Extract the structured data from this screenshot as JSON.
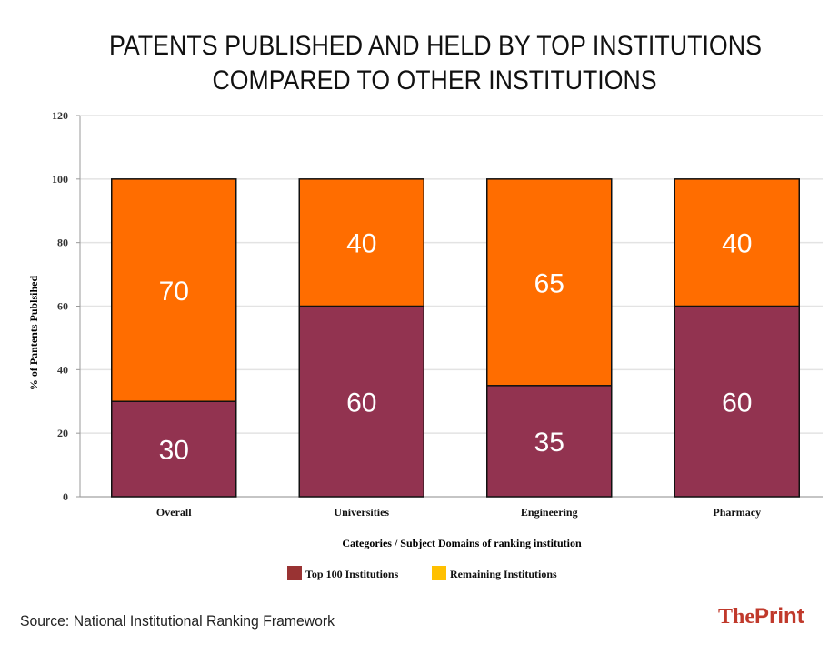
{
  "chart_data": {
    "type": "stacked_bar",
    "title": [
      "PATENTS PUBLISHED AND HELD BY TOP INSTITUTIONS",
      "COMPARED TO OTHER INSTITUTIONS"
    ],
    "x_label": "Categories / Subject  Domains of ranking institution",
    "y_label": "% of Pantents Publsihed",
    "categories": [
      "Overall",
      "Universities",
      "Engineering",
      "Pharmacy"
    ],
    "series": [
      {
        "name": "Top 100 Institutions",
        "color": "#923350",
        "legend_color": "#993333",
        "values": [
          30,
          60,
          35,
          60
        ]
      },
      {
        "name": "Remaining Institutions",
        "color": "#ff6d00",
        "legend_color": "#ffc000",
        "values": [
          70,
          40,
          65,
          40
        ]
      }
    ],
    "ylim": [
      0,
      120
    ],
    "yticks": [
      0,
      20,
      40,
      60,
      80,
      100,
      120
    ],
    "grid": true
  },
  "source": "Source: National Institutional Ranking Framework",
  "brand": {
    "prefix": "The",
    "name": "Print"
  }
}
